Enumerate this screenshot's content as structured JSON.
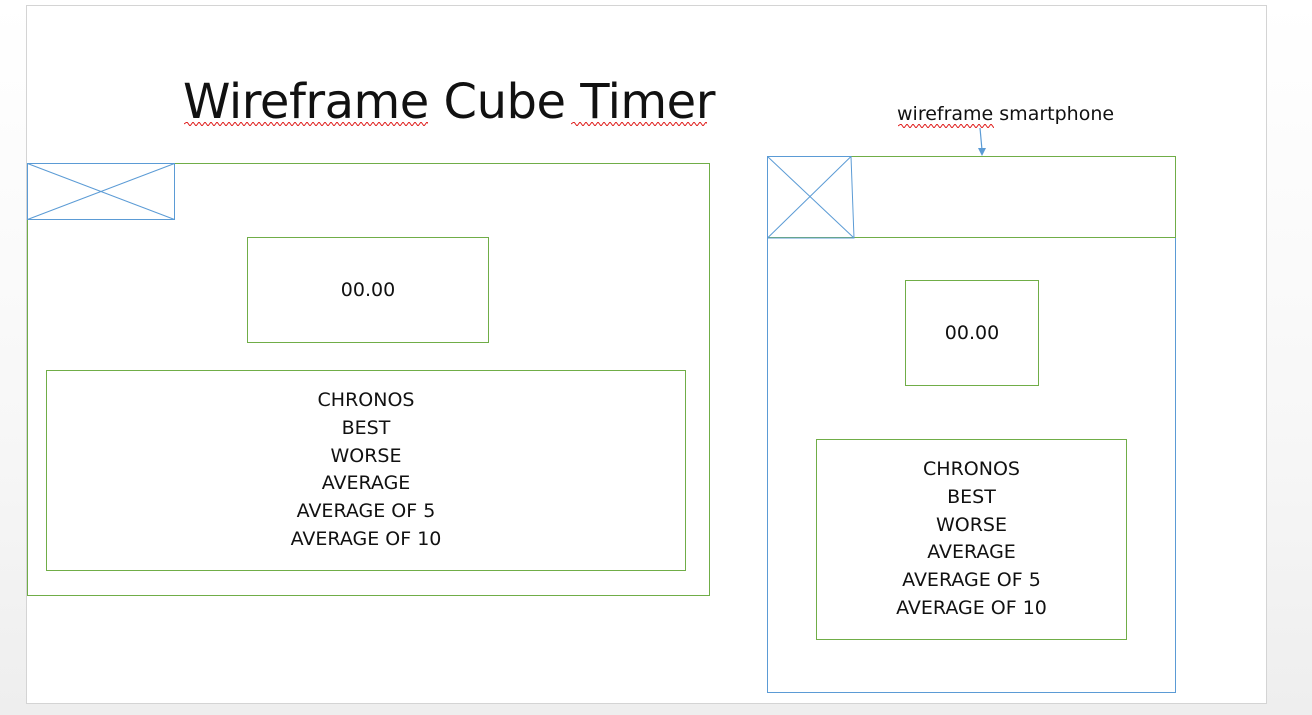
{
  "title": "Wireframe Cube Timer",
  "phone_caption": "wireframe smartphone",
  "colors": {
    "desktop_border": "#70ad47",
    "phone_border": "#5b9bd5",
    "image_placeholder": "#5b9bd5",
    "arrow": "#5b9bd5",
    "spellcheck": "#e0201f"
  },
  "desktop": {
    "image_placeholder_icon": "crossed-box-icon",
    "timer": "00.00",
    "stats": [
      "CHRONOS",
      "BEST",
      "WORSE",
      "AVERAGE",
      "AVERAGE OF 5",
      "AVERAGE OF 10"
    ]
  },
  "phone": {
    "image_placeholder_icon": "crossed-box-icon",
    "timer": "00.00",
    "stats": [
      "CHRONOS",
      "BEST",
      "WORSE",
      "AVERAGE",
      "AVERAGE OF 5",
      "AVERAGE OF 10"
    ]
  }
}
